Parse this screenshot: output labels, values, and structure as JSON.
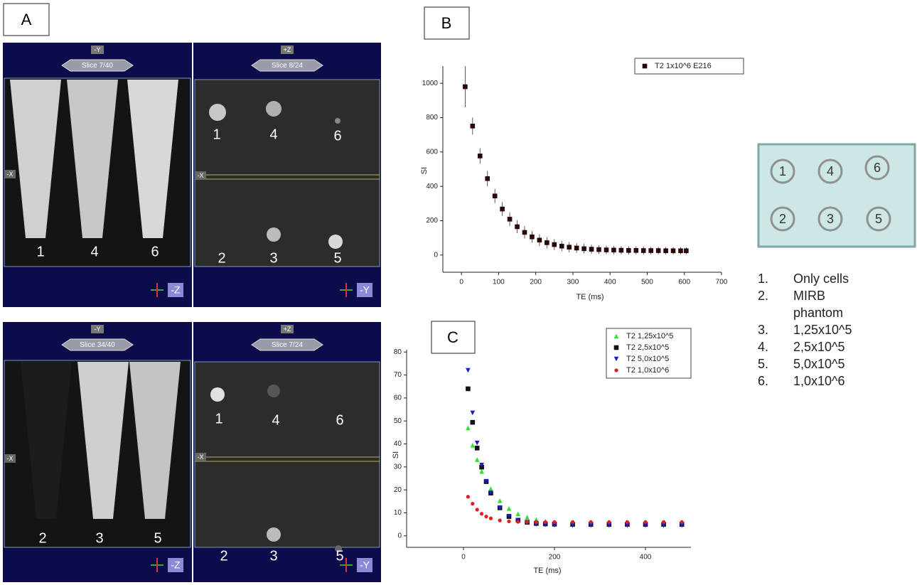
{
  "panel_labels": [
    "A",
    "B",
    "C"
  ],
  "viewers": [
    {
      "axis": "-Y",
      "slice": "Slice 7/40",
      "side": "-X",
      "orientation": "-Z",
      "labels": [
        "1",
        "4",
        "6"
      ]
    },
    {
      "axis": "+Z",
      "slice": "Slice 8/24",
      "side": "-X",
      "orientation": "-Y",
      "labels": [
        "1",
        "4",
        "6",
        "2",
        "3",
        "5"
      ]
    },
    {
      "axis": "-Y",
      "slice": "Slice 34/40",
      "side": "-X",
      "orientation": "-Z",
      "labels": [
        "2",
        "3",
        "5"
      ]
    },
    {
      "axis": "+Z",
      "slice": "Slice 7/24",
      "side": "-X",
      "orientation": "-Y",
      "labels": [
        "1",
        "4",
        "6",
        "2",
        "3",
        "5"
      ]
    }
  ],
  "diagram": {
    "wells": [
      "1",
      "4",
      "6",
      "2",
      "3",
      "5"
    ]
  },
  "key": [
    {
      "num": "1.",
      "text": "Only cells"
    },
    {
      "num": "2.",
      "text": "MIRB phantom"
    },
    {
      "num": "3.",
      "text": "1,25x10^5"
    },
    {
      "num": "4.",
      "text": "2,5x10^5"
    },
    {
      "num": "5.",
      "text": "5,0x10^5"
    },
    {
      "num": "6.",
      "text": "1,0x10^6"
    }
  ],
  "chart_data": [
    {
      "type": "scatter",
      "x_label": "TE (ms)",
      "y_label": "SI",
      "x": [
        10,
        30,
        50,
        70,
        90,
        110,
        130,
        150,
        170,
        190,
        210,
        230,
        250,
        270,
        290,
        310,
        330,
        350,
        370,
        390,
        410,
        430,
        450,
        470,
        490,
        510,
        530,
        550,
        570,
        590,
        605
      ],
      "series": [
        {
          "name": "T2 1x10^6 E216",
          "color": "#2a0606",
          "marker": "square",
          "values": [
            980,
            751,
            577,
            445,
            344,
            268,
            209,
            165,
            132,
            106,
            87,
            72,
            61,
            52,
            46,
            41,
            37,
            34,
            32,
            30,
            29,
            28,
            27,
            27,
            26,
            26,
            26,
            25,
            25,
            25,
            25
          ],
          "errors": [
            120,
            50,
            45,
            45,
            42,
            40,
            40,
            38,
            36,
            35,
            34,
            33,
            32,
            30,
            30,
            28,
            28,
            27,
            26,
            25,
            25,
            24,
            24,
            23,
            23,
            22,
            22,
            22,
            21,
            21,
            20
          ]
        }
      ],
      "xlim": [
        -50,
        700
      ],
      "xticks": [
        0,
        100,
        200,
        300,
        400,
        500,
        600,
        700
      ],
      "ylim": [
        -100,
        1100
      ],
      "yticks": [
        0,
        200,
        400,
        600,
        800,
        1000
      ]
    },
    {
      "type": "scatter",
      "x_label": "TE (ms)",
      "y_label": "SI",
      "x": [
        10,
        20,
        30,
        40,
        50,
        60,
        80,
        100,
        120,
        140,
        160,
        180,
        200,
        240,
        280,
        320,
        360,
        400,
        440,
        480
      ],
      "series": [
        {
          "name": "T2 1,25x10^5",
          "color": "#33dd33",
          "marker": "triangle-up",
          "values": [
            47,
            39.4,
            33.2,
            28,
            23.9,
            20.5,
            15.3,
            11.9,
            9.6,
            8.1,
            7.1,
            6.4,
            6,
            5.4,
            5.2,
            5.1,
            5,
            5,
            5,
            5
          ]
        },
        {
          "name": "T2 2,5x10^5",
          "color": "#111111",
          "marker": "square",
          "values": [
            64,
            49.4,
            38.2,
            29.9,
            23.6,
            18.6,
            12.2,
            8.4,
            6.8,
            5.9,
            5.4,
            5.2,
            5.1,
            5,
            5,
            5,
            5,
            5,
            5,
            5
          ]
        },
        {
          "name": "T2 5,0x10^5",
          "color": "#1a1ad0",
          "marker": "triangle-down",
          "values": [
            72,
            53.5,
            40.4,
            30.8,
            23.7,
            18.6,
            12,
            8.5,
            6.7,
            5.7,
            5,
            4.8,
            4.6,
            4.5,
            4.5,
            4.5,
            4.5,
            4.5,
            4.5,
            4.5
          ]
        },
        {
          "name": "T2 1,0x10^6",
          "color": "#e02020",
          "marker": "circle",
          "values": [
            17,
            14,
            11.4,
            9.6,
            8.4,
            7.6,
            6.7,
            6.3,
            6.1,
            6,
            6,
            6,
            6,
            6,
            6,
            6,
            6,
            6,
            6,
            6
          ]
        }
      ],
      "xlim": [
        -125,
        500
      ],
      "xticks": [
        0,
        200,
        400
      ],
      "ylim": [
        -5,
        81
      ],
      "yticks": [
        0,
        10,
        20,
        30,
        40,
        50,
        60,
        70,
        80
      ]
    }
  ]
}
